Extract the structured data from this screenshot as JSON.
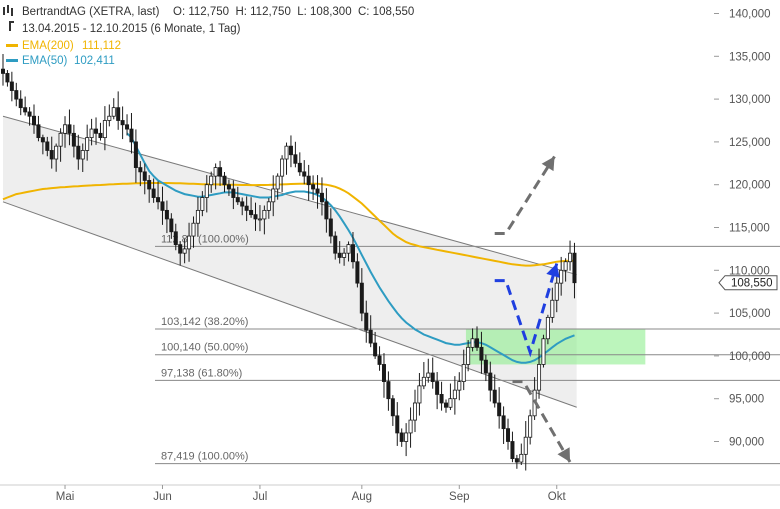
{
  "header": {
    "title": "BertrandtAG (XETRA, last)",
    "ohlc": "O: 112,750  H: 112,750  L: 108,300  C: 108,550",
    "range": "13.04.2015 - 12.10.2015 (6 Monate, 1 Tag)",
    "ema200_label": "EMA(200)",
    "ema200_value": "111,112",
    "ema50_label": "EMA(50)",
    "ema50_value": "102,411"
  },
  "colors": {
    "candle": "#1a1a1a",
    "ema200": "#f0b400",
    "ema50": "#2e9cc2",
    "channel": "#eeeeee",
    "fib_line": "#888888",
    "green_zone": "#90ee90",
    "blue_arrow": "#1f3fe0",
    "gray_arrow": "#707070"
  },
  "chart_data": {
    "type": "candlestick",
    "y_ticks": [
      "140,000",
      "135,000",
      "130,000",
      "125,000",
      "120,000",
      "115,000",
      "110,000",
      "105,000",
      "100,000",
      "95,000",
      "90,000"
    ],
    "y_tick_values": [
      140,
      135,
      130,
      125,
      120,
      115,
      110,
      105,
      100,
      95,
      90
    ],
    "ylim": [
      85.5,
      141
    ],
    "x_months": [
      "Mai",
      "Jun",
      "Jul",
      "Aug",
      "Sep",
      "Okt"
    ],
    "x_month_index": [
      14,
      36,
      58,
      81,
      103,
      125
    ],
    "n_bars": 130,
    "last_price_label": "108,550",
    "last_price": 108.55,
    "closes": [
      133,
      132,
      131,
      130,
      129,
      128.5,
      128,
      127,
      125.5,
      125,
      124,
      123,
      124.5,
      126,
      127,
      126,
      124.5,
      123,
      124,
      125.5,
      126.5,
      126,
      125.5,
      127.5,
      128,
      129,
      127.5,
      127,
      126.5,
      125,
      122,
      121.5,
      120.5,
      119.5,
      118.5,
      118,
      117,
      116,
      114.5,
      113,
      112,
      112.5,
      114,
      115.5,
      117,
      118.5,
      120,
      121,
      122,
      121,
      120,
      119.5,
      118.5,
      118,
      117.5,
      117,
      116.5,
      116,
      116,
      117,
      118,
      119.5,
      121,
      123,
      124.5,
      123.5,
      122.5,
      121.5,
      121,
      120,
      119.5,
      119,
      118,
      116,
      114,
      112,
      111.5,
      112,
      113,
      111,
      108.5,
      105,
      103,
      101.5,
      100,
      99,
      97,
      95,
      93,
      91,
      90,
      91,
      92.5,
      94.5,
      96.5,
      97.5,
      98,
      97,
      95.5,
      94.5,
      94,
      95,
      96,
      97,
      99,
      101,
      102,
      101,
      99.5,
      98,
      96,
      94.5,
      93,
      91.5,
      90,
      88,
      87.6,
      88.5,
      90.5,
      93,
      96,
      99,
      102,
      104.5,
      106.5,
      108.5,
      110,
      111,
      112,
      108.55
    ],
    "ema50": [
      null,
      null,
      null,
      null,
      null,
      null,
      null,
      null,
      null,
      null,
      null,
      null,
      null,
      null,
      null,
      null,
      null,
      null,
      null,
      null,
      null,
      null,
      null,
      null,
      null,
      null,
      null,
      null,
      126,
      125.5,
      124.5,
      123.5,
      122.5,
      121.6,
      121,
      120.5,
      120.2,
      119.9,
      119.6,
      119.3,
      119.1,
      118.9,
      118.8,
      118.7,
      118.6,
      118.6,
      118.7,
      118.8,
      118.9,
      119,
      119.1,
      119.1,
      119.1,
      119,
      118.9,
      118.8,
      118.7,
      118.6,
      118.5,
      118.5,
      118.5,
      118.6,
      118.7,
      118.8,
      119,
      119.1,
      119.2,
      119.2,
      119.2,
      119.1,
      119,
      118.8,
      118.5,
      118.1,
      117.6,
      117,
      116.3,
      115.5,
      114.7,
      113.8,
      112.8,
      111.8,
      110.8,
      109.8,
      108.9,
      108,
      107.2,
      106.4,
      105.7,
      105,
      104.4,
      103.9,
      103.5,
      103.1,
      102.8,
      102.5,
      102.3,
      102.1,
      101.9,
      101.7,
      101.5,
      101.4,
      101.3,
      101.3,
      101.4,
      101.5,
      101.6,
      101.6,
      101.5,
      101.3,
      101,
      100.7,
      100.4,
      100.1,
      99.8,
      99.5,
      99.3,
      99.2,
      99.2,
      99.3,
      99.5,
      99.8,
      100.2,
      100.6,
      101,
      101.4,
      101.7,
      102,
      102.2,
      102.411
    ],
    "ema200": [
      118.3,
      118.5,
      118.7,
      118.9,
      119,
      119.1,
      119.2,
      119.3,
      119.4,
      119.5,
      119.55,
      119.6,
      119.65,
      119.7,
      119.72,
      119.75,
      119.8,
      119.83,
      119.86,
      119.9,
      119.92,
      119.95,
      119.97,
      120,
      120.03,
      120.05,
      120.08,
      120.1,
      120.12,
      120.14,
      120.16,
      120.18,
      120.19,
      120.2,
      120.2,
      120.2,
      120.2,
      120.2,
      120.19,
      120.18,
      120.16,
      120.14,
      120.12,
      120.1,
      120.08,
      120.06,
      120.05,
      120.04,
      120.03,
      120.02,
      120.01,
      120,
      119.99,
      119.98,
      119.97,
      119.96,
      119.95,
      119.95,
      119.96,
      119.97,
      119.98,
      120,
      120.02,
      120.04,
      120.06,
      120.08,
      120.09,
      120.1,
      120.1,
      120.1,
      120.1,
      120.1,
      120.05,
      120,
      119.9,
      119.75,
      119.55,
      119.3,
      119,
      118.6,
      118.2,
      117.8,
      117.3,
      116.8,
      116.3,
      115.8,
      115.3,
      114.8,
      114.3,
      113.9,
      113.6,
      113.3,
      113.1,
      112.95,
      112.8,
      112.7,
      112.6,
      112.5,
      112.4,
      112.3,
      112.2,
      112.1,
      112,
      111.9,
      111.8,
      111.7,
      111.6,
      111.5,
      111.4,
      111.3,
      111.2,
      111.1,
      111,
      110.9,
      110.8,
      110.7,
      110.65,
      110.6,
      110.55,
      110.55,
      110.6,
      110.65,
      110.7,
      110.8,
      110.9,
      111,
      111.05,
      111.1,
      111.112,
      111.112
    ],
    "channel": {
      "upper": [
        [
          0,
          128
        ],
        [
          129.5,
          109.5
        ]
      ],
      "lower": [
        [
          0,
          118
        ],
        [
          129.5,
          94
        ]
      ],
      "x_end": 129.5
    },
    "horizontal_levels": [
      {
        "value": 112.8,
        "label": "112,8"
      },
      {
        "value": 112.8,
        "label": "(100.00%)"
      },
      {
        "value": 103.142,
        "label": "103,142 (38.20%)"
      },
      {
        "value": 100.14,
        "label": "100,140 (50.00%)"
      },
      {
        "value": 97.138,
        "label": "97,138 (61.80%)"
      },
      {
        "value": 87.419,
        "label": "87,419 (100.00%)"
      }
    ],
    "support_zone": {
      "from_index": 104.5,
      "to_index": 145,
      "low": 99,
      "high": 103.2
    },
    "projections": [
      {
        "name": "blue-dashed-projection",
        "points": [
          [
            111,
            108.8
          ],
          [
            113.5,
            108.8
          ],
          [
            119,
            100.4
          ],
          [
            125,
            110.8
          ]
        ]
      },
      {
        "name": "gray-up-projection",
        "points": [
          [
            111,
            114.3
          ],
          [
            113.5,
            114.3
          ],
          [
            124.5,
            123.3
          ]
        ]
      },
      {
        "name": "gray-down-projection",
        "points": [
          [
            115,
            97
          ],
          [
            117.5,
            97
          ],
          [
            128,
            87.6
          ]
        ]
      }
    ]
  }
}
